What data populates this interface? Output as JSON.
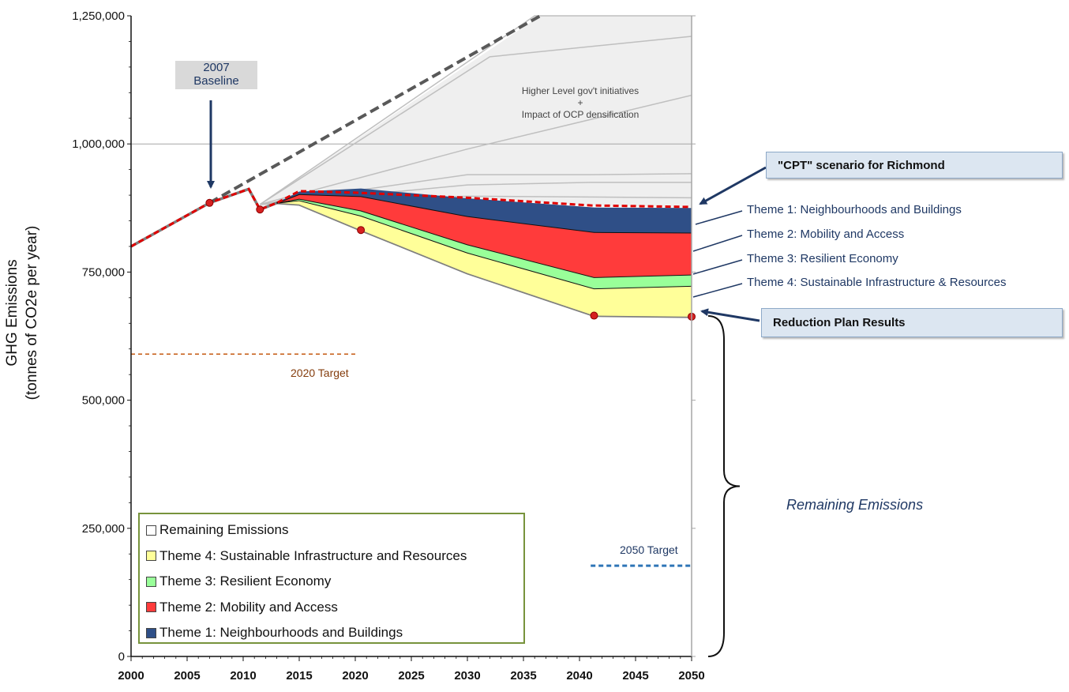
{
  "chart_data": {
    "type": "area",
    "title": "",
    "xlabel": "",
    "ylabel": "GHG Emissions",
    "ylabel2": "(tonnes of CO2e per year)",
    "xlim": [
      2000,
      2050
    ],
    "ylim": [
      0,
      1250000
    ],
    "x_ticks": [
      "2000",
      "2005",
      "2010",
      "2015",
      "2020",
      "2025",
      "2030",
      "2035",
      "2040",
      "2045",
      "2050"
    ],
    "y_ticks": [
      "0",
      "250,000",
      "500,000",
      "750,000",
      "1,000,000",
      "1,250,000"
    ],
    "grid": "horizontal at 1,000,000",
    "x": [
      2000,
      2007,
      2010.5,
      2011.5,
      2013,
      2015,
      2020.5,
      2030,
      2041.3,
      2050
    ],
    "series": [
      {
        "name": "Remaining Emissions",
        "color": "#ffffff",
        "values": [
          800000,
          885000,
          912000,
          872000,
          885000,
          882000,
          832000,
          748000,
          665000,
          663000
        ]
      },
      {
        "name": "Theme 4: Sustainable Infrastructure and Resources",
        "color": "#ffff99",
        "values": [
          0,
          0,
          0,
          0,
          0,
          8000,
          28000,
          40000,
          53000,
          60000
        ]
      },
      {
        "name": "Theme 3: Resilient Economy",
        "color": "#99ff99",
        "values": [
          0,
          0,
          0,
          0,
          0,
          3000,
          10000,
          16000,
          22000,
          22000
        ]
      },
      {
        "name": "Theme 2: Mobility and Access",
        "color": "#ff3b3b",
        "values": [
          0,
          0,
          0,
          0,
          0,
          9000,
          28000,
          55000,
          88000,
          82000
        ]
      },
      {
        "name": "Theme 1: Neighbourhoods and Buildings",
        "color": "#2f4f87",
        "values": [
          0,
          0,
          0,
          0,
          0,
          5000,
          15000,
          35000,
          48000,
          48000
        ]
      }
    ],
    "cpt_scenario": {
      "x": [
        2000,
        2007,
        2010.5,
        2011.5,
        2013,
        2015,
        2020,
        2030,
        2041,
        2050
      ],
      "y": [
        800000,
        885000,
        912000,
        872000,
        885000,
        908000,
        905000,
        895000,
        880000,
        877000
      ]
    },
    "bau_trend": {
      "x": [
        2007,
        2036.5
      ],
      "y": [
        885000,
        1250000
      ]
    },
    "gov_lines": [
      {
        "x": [
          2011.5,
          2030,
          2050
        ],
        "y": [
          882000,
          990000,
          1095000
        ]
      },
      {
        "x": [
          2011.5,
          2030,
          2041,
          2050
        ],
        "y": [
          882000,
          940000,
          940000,
          942000
        ]
      },
      {
        "x": [
          2011.5,
          2030,
          2041,
          2050
        ],
        "y": [
          882000,
          920000,
          925000,
          925000
        ]
      },
      {
        "x": [
          2011.5,
          2030,
          2050
        ],
        "y": [
          882000,
          898000,
          895000
        ]
      },
      {
        "x": [
          2011.5,
          2036,
          2050
        ],
        "y": [
          882000,
          1250000,
          1250000
        ]
      },
      {
        "x": [
          2011.5,
          2032,
          2050
        ],
        "y": [
          882000,
          1170000,
          1210000
        ]
      }
    ],
    "markers": [
      {
        "x": 2007,
        "y": 885000
      },
      {
        "x": 2011.5,
        "y": 872000
      },
      {
        "x": 2020.5,
        "y": 832000
      },
      {
        "x": 2041.3,
        "y": 665000
      },
      {
        "x": 2050,
        "y": 663000
      }
    ],
    "target_2020": {
      "x": [
        2000,
        2020
      ],
      "y": 590000,
      "label": "2020 Target"
    },
    "target_2050": {
      "x": [
        2041,
        2050
      ],
      "y": 177000,
      "label": "2050 Target"
    }
  },
  "annotations": {
    "baseline": [
      "2007",
      "Baseline"
    ],
    "gov": [
      "Higher Level gov't initiatives",
      "+",
      "Impact of OCP densification"
    ],
    "cpt_box": "\"CPT\" scenario for Richmond",
    "reduction_box": "Reduction Plan Results",
    "remaining": "Remaining Emissions",
    "themes": [
      "Theme 1: Neighbourhoods and Buildings",
      "Theme 2: Mobility and Access",
      "Theme 3: Resilient Economy",
      "Theme 4: Sustainable Infrastructure & Resources"
    ]
  },
  "legend": [
    {
      "label": "Remaining Emissions",
      "color": "#ffffff"
    },
    {
      "label": "Theme 4: Sustainable Infrastructure and Resources",
      "color": "#ffff99"
    },
    {
      "label": "Theme 3: Resilient Economy",
      "color": "#99ff99"
    },
    {
      "label": "Theme 2: Mobility and Access",
      "color": "#ff3b3b"
    },
    {
      "label": "Theme 1: Neighbourhoods and Buildings",
      "color": "#2f4f87"
    }
  ]
}
